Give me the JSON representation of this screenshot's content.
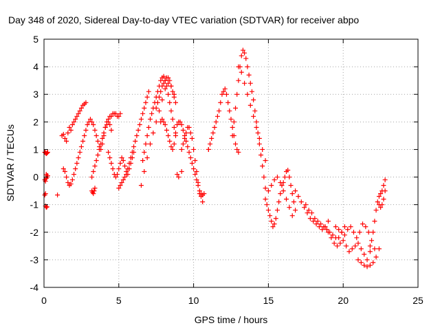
{
  "chart_data": {
    "type": "scatter",
    "title": "Day 348 of 2020, Sidereal Day-to-day VTEC variation (SDTVAR) for receiver abpo",
    "xlabel": "GPS time / hours",
    "ylabel": "SDTVAR / TECUs",
    "xlim": [
      0,
      25
    ],
    "ylim": [
      -4,
      5
    ],
    "xticks": [
      0,
      5,
      10,
      15,
      20,
      25
    ],
    "yticks": [
      -4,
      -3,
      -2,
      -1,
      0,
      1,
      2,
      3,
      4,
      5
    ],
    "grid": true,
    "marker": "+",
    "colors": {
      "series": "#ff0000",
      "grid": "#a0a0a0",
      "axis": "#000000"
    },
    "series": [
      {
        "name": "SDTVAR",
        "x": [
          0.05,
          0.1,
          0.15,
          0.2,
          0.25,
          0.05,
          0.1,
          0.15,
          0.2,
          0.25,
          0.1,
          0.15,
          0.2,
          0.05,
          0.1,
          0.15,
          0.2,
          0.9,
          1.2,
          1.3,
          1.4,
          1.5,
          1.6,
          1.7,
          1.8,
          1.9,
          2.0,
          2.1,
          2.2,
          2.3,
          2.4,
          2.5,
          2.6,
          2.7,
          2.8,
          1.3,
          1.4,
          1.5,
          1.6,
          1.7,
          1.8,
          1.9,
          2.0,
          2.1,
          2.2,
          2.3,
          2.4,
          2.5,
          2.6,
          2.7,
          2.8,
          2.9,
          3.0,
          3.1,
          3.2,
          3.3,
          3.4,
          3.5,
          3.6,
          3.7,
          3.8,
          3.9,
          4.0,
          4.1,
          4.2,
          4.3,
          4.4,
          4.5,
          3.2,
          3.3,
          3.4,
          3.5,
          3.6,
          3.7,
          3.8,
          3.9,
          4.0,
          4.1,
          4.2,
          4.3,
          4.4,
          4.5,
          4.6,
          4.7,
          4.8,
          4.9,
          5.0,
          5.1,
          3.2,
          3.25,
          3.3,
          3.35,
          3.4,
          4.3,
          4.4,
          4.5,
          4.6,
          4.7,
          4.8,
          4.9,
          5.0,
          5.1,
          5.2,
          5.3,
          5.4,
          5.5,
          5.6,
          5.7,
          5.8,
          5.9,
          6.0,
          5.0,
          5.1,
          5.2,
          5.3,
          5.4,
          5.5,
          5.6,
          5.7,
          5.8,
          5.9,
          6.0,
          6.1,
          6.2,
          6.3,
          6.4,
          6.5,
          6.6,
          6.7,
          6.8,
          6.9,
          7.0,
          6.6,
          6.7,
          6.8,
          6.9,
          7.0,
          7.1,
          7.2,
          7.3,
          7.4,
          7.5,
          7.6,
          7.7,
          7.8,
          7.9,
          8.0,
          8.1,
          8.2,
          8.3,
          8.4,
          8.5,
          8.6,
          8.7,
          8.8,
          7.5,
          7.6,
          7.7,
          7.8,
          7.9,
          8.0,
          8.1,
          8.2,
          8.3,
          8.4,
          8.5,
          8.6,
          8.7,
          8.8,
          6.5,
          6.7,
          6.9,
          7.1,
          7.3,
          7.5,
          7.7,
          7.9,
          8.1,
          8.3,
          8.5,
          8.7,
          7.8,
          7.9,
          8.0,
          8.1,
          8.2,
          8.3,
          8.4,
          8.5,
          8.6,
          8.7,
          8.8,
          8.9,
          9.0,
          9.1,
          9.2,
          9.3,
          9.4,
          9.5,
          9.6,
          9.7,
          9.8,
          9.9,
          10.0,
          10.1,
          10.2,
          10.3,
          10.4,
          10.5,
          10.6,
          9.2,
          9.3,
          9.4,
          9.5,
          9.6,
          9.7,
          9.8,
          9.9,
          10.0,
          10.1,
          10.2,
          10.3,
          10.4,
          8.9,
          9.0,
          9.2,
          10.5,
          10.6,
          10.7,
          11.0,
          11.0,
          11.1,
          11.2,
          11.3,
          11.4,
          11.5,
          11.6,
          11.7,
          11.8,
          11.9,
          12.0,
          12.1,
          12.2,
          12.3,
          12.4,
          12.5,
          12.6,
          12.7,
          12.8,
          12.9,
          13.0,
          12.6,
          12.7,
          12.8,
          12.9,
          13.0,
          13.1,
          13.2,
          13.3,
          13.4,
          13.5,
          13.6,
          13.7,
          13.8,
          13.9,
          14.0,
          14.1,
          14.2,
          14.3,
          14.4,
          14.5,
          14.6,
          14.7,
          14.8,
          13.0,
          13.2,
          13.4,
          13.6,
          13.8,
          14.0,
          14.2,
          14.4,
          14.6,
          14.8,
          14.8,
          14.9,
          15.0,
          15.1,
          15.2,
          15.3,
          15.4,
          15.5,
          15.6,
          15.7,
          15.8,
          15.9,
          16.0,
          16.1,
          16.2,
          16.3,
          16.4,
          16.5,
          16.6,
          16.7,
          16.8,
          15.0,
          15.2,
          15.4,
          15.6,
          15.8,
          16.0,
          16.2,
          16.4,
          16.6,
          16.8,
          17.0,
          17.2,
          17.4,
          17.6,
          17.8,
          18.0,
          18.2,
          18.4,
          18.6,
          18.8,
          19.0,
          17.5,
          17.7,
          17.9,
          18.1,
          18.3,
          18.5,
          18.7,
          18.9,
          19.1,
          19.3,
          19.5,
          19.7,
          19.9,
          20.1,
          19.0,
          19.2,
          19.4,
          19.6,
          19.8,
          20.0,
          20.2,
          20.4,
          20.6,
          20.8,
          21.0,
          21.2,
          21.4,
          21.6,
          21.8,
          19.5,
          19.7,
          19.9,
          20.1,
          20.3,
          20.5,
          20.7,
          20.9,
          21.1,
          21.3,
          21.5,
          21.7,
          21.9,
          22.1,
          21.0,
          21.2,
          21.4,
          21.6,
          21.8,
          22.0,
          22.2,
          22.4,
          21.8,
          22.0,
          22.1,
          22.2,
          22.3,
          22.4,
          22.5,
          22.6,
          22.7,
          22.8,
          22.4,
          22.5,
          22.6,
          22.7,
          22.8
        ],
        "y": [
          0.9,
          0.88,
          0.85,
          0.87,
          0.9,
          -0.1,
          -0.15,
          -0.05,
          0.0,
          0.05,
          -1.05,
          -1.1,
          -1.08,
          -0.65,
          -0.6,
          0.1,
          0.05,
          -0.65,
          1.5,
          1.55,
          1.4,
          1.3,
          1.6,
          1.8,
          1.7,
          1.9,
          2.0,
          2.1,
          2.2,
          2.3,
          2.4,
          2.5,
          2.6,
          2.65,
          2.7,
          0.3,
          0.2,
          0.0,
          -0.2,
          -0.3,
          -0.25,
          -0.1,
          0.1,
          0.3,
          0.5,
          0.7,
          0.9,
          1.1,
          1.3,
          1.5,
          1.7,
          1.9,
          2.0,
          2.1,
          2.0,
          1.9,
          1.7,
          1.5,
          1.3,
          1.1,
          1.0,
          1.2,
          1.5,
          1.8,
          1.9,
          2.0,
          1.9,
          1.7,
          0.0,
          0.2,
          0.4,
          0.6,
          0.8,
          1.0,
          1.2,
          1.4,
          1.6,
          1.8,
          2.0,
          2.1,
          2.2,
          2.2,
          2.3,
          2.3,
          2.3,
          2.2,
          2.2,
          2.3,
          -0.5,
          -0.55,
          -0.6,
          -0.5,
          -0.4,
          0.9,
          0.7,
          0.5,
          0.3,
          0.1,
          0.0,
          0.1,
          0.3,
          0.5,
          0.7,
          0.6,
          0.4,
          0.2,
          0.1,
          0.3,
          0.5,
          0.7,
          0.9,
          -0.4,
          -0.3,
          -0.2,
          -0.1,
          0.0,
          0.1,
          0.3,
          0.5,
          0.7,
          0.9,
          1.1,
          1.3,
          1.5,
          1.7,
          1.9,
          2.1,
          2.3,
          2.5,
          2.7,
          2.9,
          3.1,
          0.6,
          0.9,
          1.2,
          1.5,
          1.8,
          2.1,
          2.3,
          2.5,
          2.7,
          2.9,
          3.1,
          3.3,
          3.5,
          3.6,
          3.65,
          3.5,
          3.3,
          3.0,
          2.7,
          2.4,
          2.1,
          1.8,
          1.5,
          2.5,
          2.7,
          2.9,
          3.1,
          3.3,
          3.4,
          3.5,
          3.6,
          3.6,
          3.5,
          3.3,
          3.1,
          2.9,
          2.7,
          -0.3,
          0.2,
          0.7,
          1.2,
          1.6,
          2.0,
          2.4,
          2.8,
          3.2,
          3.4,
          3.3,
          3.0,
          2.0,
          2.1,
          2.0,
          1.9,
          1.7,
          1.5,
          1.3,
          1.1,
          1.0,
          1.2,
          1.6,
          1.9,
          2.0,
          2.0,
          1.9,
          1.7,
          1.5,
          1.3,
          1.1,
          0.9,
          0.7,
          0.5,
          0.3,
          0.1,
          -0.1,
          -0.3,
          -0.5,
          -0.7,
          -0.9,
          1.0,
          1.2,
          1.4,
          1.6,
          1.8,
          1.8,
          1.6,
          1.4,
          1.0,
          0.6,
          0.2,
          -0.2,
          -0.6,
          0.1,
          0.0,
          0.2,
          -0.6,
          -0.65,
          -0.6,
          1.0,
          1.0,
          1.2,
          1.4,
          1.6,
          1.8,
          2.0,
          2.2,
          2.4,
          2.7,
          3.0,
          3.1,
          3.2,
          3.0,
          2.7,
          2.4,
          2.1,
          1.8,
          1.5,
          1.2,
          1.0,
          0.9,
          1.5,
          2.0,
          2.5,
          3.0,
          3.5,
          4.0,
          4.4,
          4.6,
          4.5,
          4.3,
          4.0,
          3.7,
          3.4,
          3.1,
          2.8,
          2.4,
          2.0,
          1.6,
          1.2,
          0.8,
          0.4,
          0.0,
          -0.4,
          4.0,
          3.8,
          3.4,
          3.0,
          2.6,
          2.2,
          1.8,
          1.4,
          1.0,
          0.6,
          -0.8,
          -1.0,
          -1.2,
          -1.4,
          -1.6,
          -1.8,
          -1.7,
          -1.5,
          -1.2,
          -0.9,
          -0.6,
          -0.3,
          -0.2,
          0.0,
          0.2,
          0.25,
          0.0,
          -0.3,
          -0.6,
          -0.9,
          -1.2,
          -0.5,
          -0.3,
          -0.1,
          0.0,
          -0.2,
          -0.5,
          -0.8,
          -1.1,
          -1.4,
          -0.5,
          -0.7,
          -0.9,
          -1.1,
          -1.3,
          -1.5,
          -1.6,
          -1.7,
          -1.8,
          -1.9,
          -1.8,
          -1.6,
          -1.0,
          -1.2,
          -1.3,
          -1.5,
          -1.6,
          -1.7,
          -1.8,
          -1.9,
          -2.0,
          -2.1,
          -2.2,
          -2.2,
          -2.0,
          -1.8,
          -2.0,
          -2.2,
          -2.4,
          -2.5,
          -2.4,
          -2.3,
          -2.5,
          -2.7,
          -2.6,
          -2.5,
          -2.4,
          -2.6,
          -2.8,
          -3.0,
          -2.7,
          -1.8,
          -1.9,
          -2.0,
          -2.1,
          -1.9,
          -1.8,
          -2.0,
          -2.2,
          -2.0,
          -1.7,
          -1.8,
          -2.0,
          -2.3,
          -2.6,
          -3.0,
          -3.1,
          -3.2,
          -3.25,
          -3.2,
          -3.1,
          -2.9,
          -2.6,
          -2.5,
          -2.0,
          -1.6,
          -1.2,
          -0.9,
          -0.7,
          -0.6,
          -0.5,
          -0.3,
          -0.1,
          -1.0,
          -1.1,
          -1.0,
          -0.8,
          -0.5
        ]
      }
    ]
  }
}
